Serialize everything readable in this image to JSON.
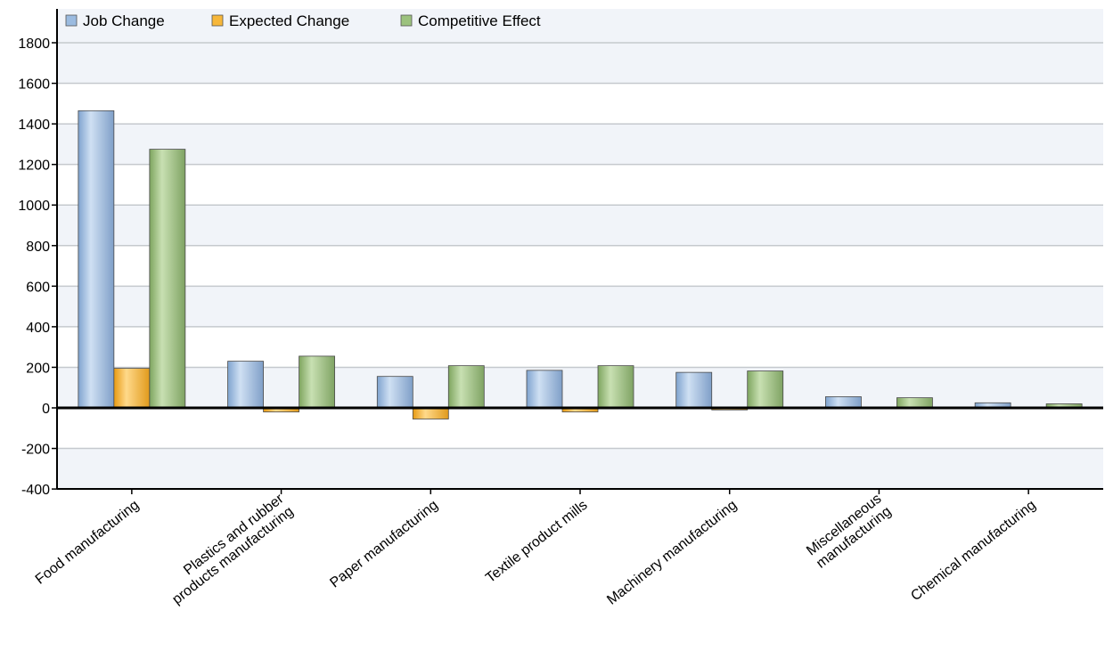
{
  "chart_data": {
    "type": "bar",
    "title": "",
    "xlabel": "",
    "ylabel": "",
    "ylim": [
      -400,
      1800
    ],
    "yticks": [
      -400,
      -200,
      0,
      200,
      400,
      600,
      800,
      1000,
      1200,
      1400,
      1600,
      1800
    ],
    "grid": true,
    "legend_position": "top-left",
    "categories": [
      [
        "Food manufacturing"
      ],
      [
        "Plastics and rubber",
        "products manufacturing"
      ],
      [
        "Paper manufacturing"
      ],
      [
        "Textile product mills"
      ],
      [
        "Machinery manufacturing"
      ],
      [
        "Miscellaneous",
        "manufacturing"
      ],
      [
        "Chemical manufacturing"
      ]
    ],
    "series": [
      {
        "name": "Job Change",
        "color": "#9bbbe0",
        "values": [
          1465,
          230,
          155,
          185,
          175,
          55,
          25
        ]
      },
      {
        "name": "Expected Change",
        "color": "#f7b73a",
        "values": [
          195,
          -20,
          -55,
          -20,
          -10,
          0,
          0
        ]
      },
      {
        "name": "Competitive Effect",
        "color": "#9cc27e",
        "values": [
          1275,
          255,
          208,
          208,
          182,
          50,
          20
        ]
      }
    ]
  }
}
